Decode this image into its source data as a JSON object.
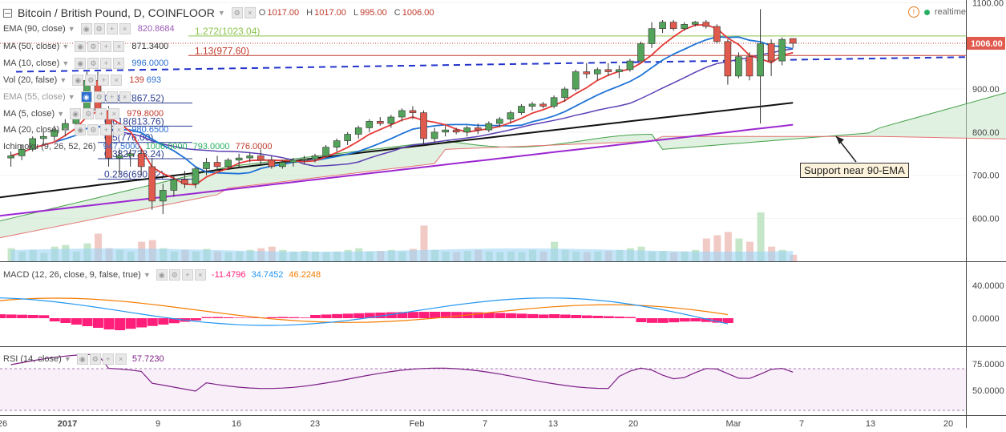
{
  "header": {
    "symbol_title": "Bitcoin / British Pound, D, COINFLOOR",
    "ohlc": {
      "o_label": "O",
      "o": "1017.00",
      "h_label": "H",
      "h": "1017.00",
      "l_label": "L",
      "l": "995.00",
      "c_label": "C",
      "c": "1006.00"
    },
    "realtime_label": "realtime",
    "alert_icon": "alert-circle-icon"
  },
  "indicators": [
    {
      "label": "EMA (90, close)",
      "value": "820.8684",
      "color": "#9b59b6"
    },
    {
      "label": "MA (50, close)",
      "value": "871.3400",
      "color": "#333333"
    },
    {
      "label": "MA (10, close)",
      "value": "996.0000",
      "color": "#2c6fd1"
    },
    {
      "label": "Vol (20, false)",
      "value": "139",
      "value2": "693",
      "color": "#c0392b",
      "color2": "#2c6fd1"
    },
    {
      "label": "EMA (55, close)",
      "value": "",
      "color": "#999999"
    },
    {
      "label": "MA (5, close)",
      "value": "979.8000",
      "color": "#c0392b"
    },
    {
      "label": "MA (20, close)",
      "value": "980.6500",
      "color": "#2c6fd1"
    },
    {
      "label": "Ichimoku (9, 26, 52, 26)",
      "value": "947.5000",
      "v2": "1006.0000",
      "v3": "793.0000",
      "v4": "776.0000"
    }
  ],
  "fib_levels": [
    {
      "label": "1.272(1023.04)",
      "price": 1023.04,
      "color": "#8bc34a"
    },
    {
      "label": "1.13(977.60)",
      "price": 977.6,
      "color": "#c0392b"
    },
    {
      "label": "0.786(867.52)",
      "price": 867.52,
      "color": "#2c3e90"
    },
    {
      "label": "0.618(813.76)",
      "price": 813.76,
      "color": "#2c3e90"
    },
    {
      "label": "0.5(776.00)",
      "price": 776.0,
      "color": "#2c3e90"
    },
    {
      "label": "0.382(738.24)",
      "price": 738.24,
      "color": "#2c3e90"
    },
    {
      "label": "0.236(690.92)",
      "price": 690.92,
      "color": "#2c3e90"
    }
  ],
  "annotation": {
    "text": "Support near 90-EMA"
  },
  "macd_legend": {
    "label": "MACD (12, 26, close, 9, false, true)",
    "v1": "-11.4796",
    "v2": "34.7452",
    "v3": "46.2248"
  },
  "rsi_legend": {
    "label": "RSI (14, close)",
    "v1": "57.7230"
  },
  "price_axis": {
    "ticks": [
      "1100.00",
      "1000.00",
      "900.00",
      "800.00",
      "700.00",
      "600.00"
    ],
    "current": "1006.00"
  },
  "macd_axis": {
    "ticks": [
      "40.0000",
      "0.0000"
    ]
  },
  "rsi_axis": {
    "ticks": [
      "75.0000",
      "50.0000"
    ]
  },
  "x_axis": {
    "ticks": [
      "26",
      "2017",
      "9",
      "16",
      "23",
      "Feb",
      "7",
      "13",
      "20",
      "Mar",
      "7",
      "13",
      "20"
    ]
  },
  "colors": {
    "up": "#53a35a",
    "down": "#e05a4e",
    "ma5": "#e53935",
    "ma10": "#1e73d6",
    "ma50": "#111111",
    "ema90": "#9c27d0",
    "macd": "#2196f3",
    "signal": "#f57c00",
    "hist": "#ff1f7a",
    "rsi": "#7e1f86"
  },
  "chart_data": {
    "type": "candlestick",
    "title": "Bitcoin / British Pound, D, COINFLOOR",
    "ylim": [
      520,
      1110
    ],
    "candles": [
      {
        "o": 740,
        "h": 755,
        "l": 720,
        "c": 745
      },
      {
        "o": 745,
        "h": 770,
        "l": 735,
        "c": 760
      },
      {
        "o": 760,
        "h": 790,
        "l": 755,
        "c": 785
      },
      {
        "o": 785,
        "h": 800,
        "l": 770,
        "c": 790
      },
      {
        "o": 790,
        "h": 815,
        "l": 780,
        "c": 805
      },
      {
        "o": 805,
        "h": 830,
        "l": 790,
        "c": 820
      },
      {
        "o": 820,
        "h": 850,
        "l": 810,
        "c": 845
      },
      {
        "o": 845,
        "h": 940,
        "l": 840,
        "c": 920
      },
      {
        "o": 920,
        "h": 940,
        "l": 830,
        "c": 850
      },
      {
        "o": 850,
        "h": 860,
        "l": 720,
        "c": 740
      },
      {
        "o": 740,
        "h": 760,
        "l": 700,
        "c": 745
      },
      {
        "o": 745,
        "h": 760,
        "l": 720,
        "c": 750
      },
      {
        "o": 750,
        "h": 760,
        "l": 700,
        "c": 720
      },
      {
        "o": 720,
        "h": 740,
        "l": 620,
        "c": 640
      },
      {
        "o": 640,
        "h": 680,
        "l": 610,
        "c": 665
      },
      {
        "o": 665,
        "h": 700,
        "l": 650,
        "c": 690
      },
      {
        "o": 690,
        "h": 710,
        "l": 670,
        "c": 680
      },
      {
        "o": 680,
        "h": 720,
        "l": 670,
        "c": 715
      },
      {
        "o": 715,
        "h": 740,
        "l": 700,
        "c": 730
      },
      {
        "o": 730,
        "h": 745,
        "l": 710,
        "c": 720
      },
      {
        "o": 720,
        "h": 740,
        "l": 712,
        "c": 735
      },
      {
        "o": 735,
        "h": 750,
        "l": 720,
        "c": 740
      },
      {
        "o": 740,
        "h": 752,
        "l": 730,
        "c": 745
      },
      {
        "o": 745,
        "h": 760,
        "l": 725,
        "c": 735
      },
      {
        "o": 735,
        "h": 745,
        "l": 715,
        "c": 720
      },
      {
        "o": 720,
        "h": 735,
        "l": 715,
        "c": 730
      },
      {
        "o": 730,
        "h": 740,
        "l": 720,
        "c": 735
      },
      {
        "o": 735,
        "h": 745,
        "l": 725,
        "c": 738
      },
      {
        "o": 738,
        "h": 750,
        "l": 730,
        "c": 745
      },
      {
        "o": 745,
        "h": 770,
        "l": 740,
        "c": 765
      },
      {
        "o": 765,
        "h": 785,
        "l": 755,
        "c": 780
      },
      {
        "o": 780,
        "h": 800,
        "l": 770,
        "c": 795
      },
      {
        "o": 795,
        "h": 815,
        "l": 785,
        "c": 810
      },
      {
        "o": 810,
        "h": 830,
        "l": 800,
        "c": 825
      },
      {
        "o": 825,
        "h": 835,
        "l": 815,
        "c": 820
      },
      {
        "o": 820,
        "h": 840,
        "l": 810,
        "c": 835
      },
      {
        "o": 835,
        "h": 855,
        "l": 825,
        "c": 850
      },
      {
        "o": 850,
        "h": 860,
        "l": 830,
        "c": 845
      },
      {
        "o": 845,
        "h": 850,
        "l": 770,
        "c": 785
      },
      {
        "o": 785,
        "h": 810,
        "l": 775,
        "c": 800
      },
      {
        "o": 800,
        "h": 815,
        "l": 790,
        "c": 805
      },
      {
        "o": 805,
        "h": 810,
        "l": 795,
        "c": 800
      },
      {
        "o": 800,
        "h": 815,
        "l": 790,
        "c": 810
      },
      {
        "o": 810,
        "h": 820,
        "l": 795,
        "c": 805
      },
      {
        "o": 805,
        "h": 825,
        "l": 800,
        "c": 820
      },
      {
        "o": 820,
        "h": 835,
        "l": 812,
        "c": 830
      },
      {
        "o": 830,
        "h": 850,
        "l": 820,
        "c": 845
      },
      {
        "o": 845,
        "h": 865,
        "l": 840,
        "c": 860
      },
      {
        "o": 860,
        "h": 870,
        "l": 850,
        "c": 865
      },
      {
        "o": 865,
        "h": 870,
        "l": 855,
        "c": 860
      },
      {
        "o": 860,
        "h": 885,
        "l": 855,
        "c": 880
      },
      {
        "o": 880,
        "h": 905,
        "l": 870,
        "c": 900
      },
      {
        "o": 900,
        "h": 945,
        "l": 895,
        "c": 940
      },
      {
        "o": 940,
        "h": 960,
        "l": 925,
        "c": 935
      },
      {
        "o": 935,
        "h": 950,
        "l": 920,
        "c": 945
      },
      {
        "o": 945,
        "h": 960,
        "l": 930,
        "c": 940
      },
      {
        "o": 940,
        "h": 955,
        "l": 925,
        "c": 945
      },
      {
        "o": 945,
        "h": 970,
        "l": 940,
        "c": 965
      },
      {
        "o": 965,
        "h": 1010,
        "l": 960,
        "c": 1005
      },
      {
        "o": 1005,
        "h": 1055,
        "l": 995,
        "c": 1040
      },
      {
        "o": 1040,
        "h": 1060,
        "l": 1030,
        "c": 1055
      },
      {
        "o": 1055,
        "h": 1060,
        "l": 1035,
        "c": 1040
      },
      {
        "o": 1040,
        "h": 1055,
        "l": 1035,
        "c": 1050
      },
      {
        "o": 1050,
        "h": 1058,
        "l": 1045,
        "c": 1055
      },
      {
        "o": 1055,
        "h": 1060,
        "l": 1040,
        "c": 1045
      },
      {
        "o": 1045,
        "h": 1050,
        "l": 1005,
        "c": 1010
      },
      {
        "o": 1010,
        "h": 1015,
        "l": 910,
        "c": 930
      },
      {
        "o": 930,
        "h": 985,
        "l": 925,
        "c": 975
      },
      {
        "o": 975,
        "h": 985,
        "l": 920,
        "c": 930
      },
      {
        "o": 930,
        "h": 1085,
        "l": 820,
        "c": 1005
      },
      {
        "o": 1005,
        "h": 1015,
        "l": 930,
        "c": 965
      },
      {
        "o": 965,
        "h": 1020,
        "l": 955,
        "c": 1015
      },
      {
        "o": 1017,
        "h": 1017,
        "l": 995,
        "c": 1006
      }
    ],
    "volume": [
      40,
      30,
      35,
      25,
      45,
      50,
      30,
      55,
      85,
      40,
      35,
      30,
      60,
      65,
      40,
      30,
      35,
      30,
      38,
      30,
      28,
      30,
      35,
      40,
      45,
      35,
      30,
      32,
      30,
      28,
      30,
      35,
      40,
      30,
      32,
      35,
      30,
      38,
      110,
      35,
      30,
      28,
      32,
      35,
      30,
      28,
      30,
      28,
      35,
      30,
      60,
      35,
      30,
      28,
      30,
      32,
      35,
      40,
      45,
      30,
      32,
      28,
      30,
      35,
      70,
      80,
      90,
      70,
      60,
      150,
      45,
      35,
      20
    ],
    "x_labels": [
      "26",
      "2017",
      "9",
      "16",
      "23",
      "Feb",
      "7",
      "13",
      "20",
      "Mar",
      "7",
      "13",
      "20"
    ]
  }
}
